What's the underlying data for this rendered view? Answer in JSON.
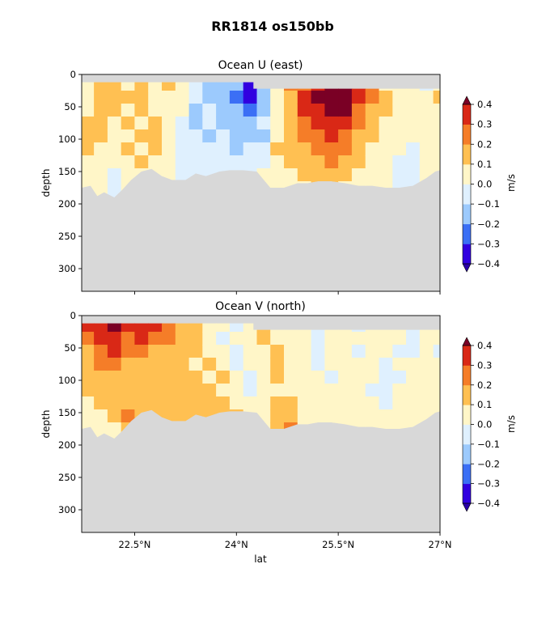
{
  "figure": {
    "suptitle": "RR1814 os150bb"
  },
  "colorbar": {
    "unit": "m/s",
    "levels": [
      -0.4,
      -0.3,
      -0.2,
      -0.1,
      0.0,
      0.1,
      0.2,
      0.3,
      0.4
    ],
    "tick_labels": [
      "−0.4",
      "−0.3",
      "−0.2",
      "−0.1",
      "0.0",
      "0.1",
      "0.2",
      "0.3",
      "0.4"
    ],
    "colors": [
      "#3100e0",
      "#3b6ff5",
      "#9ccafd",
      "#dff0fe",
      "#fff6c8",
      "#ffc052",
      "#f57d28",
      "#d92816"
    ],
    "under_color": "#2a00a8",
    "over_color": "#7a0025",
    "nodata_color": "#d8d8d8"
  },
  "chart_data": [
    {
      "type": "heatmap",
      "title": "Ocean U (east)",
      "xlabel": "",
      "ylabel": "depth",
      "xlim": [
        21.72,
        27.0
      ],
      "ylim": [
        335,
        0
      ],
      "x_ticks": [
        22.5,
        24.0,
        25.5,
        27.0
      ],
      "x_tick_labels": [],
      "y_ticks": [
        0,
        50,
        100,
        150,
        200,
        250,
        300
      ],
      "y_tick_labels": [
        "0",
        "50",
        "100",
        "150",
        "200",
        "250",
        "300"
      ],
      "surface_depth_m": [
        [
          21.72,
          12
        ],
        [
          24.25,
          12
        ],
        [
          24.25,
          22
        ],
        [
          25.0,
          22
        ],
        [
          27.0,
          22
        ]
      ],
      "bottom_depth_m": [
        [
          21.72,
          175
        ],
        [
          21.85,
          172
        ],
        [
          21.95,
          188
        ],
        [
          22.05,
          182
        ],
        [
          22.2,
          190
        ],
        [
          22.32,
          178
        ],
        [
          22.45,
          163
        ],
        [
          22.6,
          150
        ],
        [
          22.75,
          146
        ],
        [
          22.9,
          157
        ],
        [
          23.05,
          163
        ],
        [
          23.25,
          163
        ],
        [
          23.4,
          153
        ],
        [
          23.55,
          157
        ],
        [
          23.75,
          150
        ],
        [
          23.9,
          148
        ],
        [
          24.1,
          148
        ],
        [
          24.3,
          150
        ],
        [
          24.5,
          175
        ],
        [
          24.7,
          175
        ],
        [
          24.9,
          168
        ],
        [
          25.05,
          168
        ],
        [
          25.2,
          165
        ],
        [
          25.4,
          165
        ],
        [
          25.6,
          168
        ],
        [
          25.8,
          172
        ],
        [
          26.0,
          172
        ],
        [
          26.2,
          175
        ],
        [
          26.4,
          175
        ],
        [
          26.6,
          172
        ],
        [
          26.8,
          160
        ],
        [
          26.93,
          150
        ],
        [
          27.0,
          148
        ]
      ],
      "depths_m": [
        15,
        35,
        55,
        75,
        95,
        115,
        135,
        155,
        175
      ],
      "lats": [
        21.8,
        22.0,
        22.2,
        22.4,
        22.6,
        22.8,
        23.0,
        23.2,
        23.4,
        23.6,
        23.8,
        24.0,
        24.2,
        24.4,
        24.6,
        24.8,
        25.0,
        25.2,
        25.4,
        25.6,
        25.8,
        26.0,
        26.2,
        26.4,
        26.6,
        26.8,
        27.0
      ],
      "values": [
        [
          0.05,
          0.12,
          0.15,
          0.05,
          0.12,
          0.02,
          0.1,
          0.05,
          -0.05,
          -0.12,
          -0.15,
          -0.2,
          -0.35,
          -0.18,
          0.02,
          0.2,
          0.28,
          0.38,
          0.45,
          0.42,
          0.35,
          0.22,
          0.08,
          0.05,
          0.02,
          -0.02,
          0.05
        ],
        [
          0.08,
          0.15,
          0.18,
          0.12,
          0.15,
          0.05,
          0.08,
          0.02,
          -0.08,
          -0.15,
          -0.18,
          -0.22,
          -0.4,
          -0.2,
          0.0,
          0.18,
          0.3,
          0.42,
          0.48,
          0.45,
          0.32,
          0.2,
          0.1,
          0.08,
          0.05,
          0.02,
          0.12
        ],
        [
          0.05,
          0.12,
          0.1,
          0.08,
          0.12,
          0.08,
          0.05,
          0.0,
          -0.12,
          -0.1,
          -0.15,
          -0.18,
          -0.25,
          -0.15,
          0.05,
          0.15,
          0.32,
          0.38,
          0.42,
          0.4,
          0.28,
          0.15,
          0.12,
          0.05,
          0.05,
          0.08,
          0.05
        ],
        [
          0.12,
          0.1,
          0.08,
          0.12,
          0.05,
          0.12,
          0.08,
          -0.05,
          -0.12,
          -0.08,
          -0.12,
          -0.15,
          -0.12,
          -0.1,
          0.08,
          0.18,
          0.25,
          0.3,
          0.35,
          0.3,
          0.22,
          0.12,
          0.08,
          0.05,
          0.02,
          0.05,
          0.02
        ],
        [
          0.15,
          0.12,
          0.05,
          0.08,
          0.1,
          0.15,
          0.05,
          -0.08,
          -0.05,
          -0.12,
          -0.1,
          -0.12,
          -0.15,
          -0.12,
          0.05,
          0.15,
          0.2,
          0.25,
          0.32,
          0.28,
          0.18,
          0.1,
          0.05,
          0.02,
          0.0,
          0.02,
          0.05
        ],
        [
          0.12,
          0.08,
          0.05,
          0.1,
          0.08,
          0.12,
          0.02,
          -0.05,
          -0.08,
          -0.1,
          -0.08,
          -0.12,
          -0.1,
          -0.05,
          0.12,
          0.12,
          0.18,
          0.22,
          0.28,
          0.22,
          0.15,
          0.08,
          0.05,
          0.0,
          -0.05,
          0.02,
          0.05
        ],
        [
          0.08,
          0.05,
          0.02,
          0.05,
          0.1,
          0.08,
          0.0,
          -0.02,
          -0.05,
          -0.08,
          -0.05,
          -0.08,
          -0.08,
          -0.02,
          0.08,
          0.1,
          0.15,
          0.18,
          0.2,
          0.15,
          0.12,
          0.05,
          0.02,
          -0.02,
          -0.05,
          0.0,
          0.05
        ],
        [
          0.05,
          0.02,
          -0.02,
          0.02,
          0.05,
          0.05,
          0.0,
          -0.02,
          -0.05,
          -0.05,
          -0.02,
          -0.05,
          -0.05,
          0.02,
          0.05,
          0.08,
          0.12,
          0.15,
          0.12,
          0.1,
          0.08,
          0.05,
          0.0,
          -0.05,
          -0.08,
          0.02,
          0.05
        ],
        [
          0.02,
          0.0,
          -0.02,
          0.02,
          0.05,
          0.02,
          0.0,
          0.0,
          0.0,
          0.0,
          0.0,
          0.0,
          0.0,
          0.02,
          0.05,
          0.05,
          0.08,
          0.1,
          0.1,
          0.08,
          0.05,
          0.02,
          0.0,
          -0.05,
          -0.08,
          0.0,
          0.02
        ]
      ]
    },
    {
      "type": "heatmap",
      "title": "Ocean V (north)",
      "xlabel": "lat",
      "ylabel": "depth",
      "xlim": [
        21.72,
        27.0
      ],
      "ylim": [
        335,
        0
      ],
      "x_ticks": [
        22.5,
        24.0,
        25.5,
        27.0
      ],
      "x_tick_labels": [
        "22.5°N",
        "24°N",
        "25.5°N",
        "27°N"
      ],
      "y_ticks": [
        0,
        50,
        100,
        150,
        200,
        250,
        300
      ],
      "y_tick_labels": [
        "0",
        "50",
        "100",
        "150",
        "200",
        "250",
        "300"
      ],
      "surface_depth_m": [
        [
          21.72,
          12
        ],
        [
          24.25,
          12
        ],
        [
          24.25,
          22
        ],
        [
          25.0,
          22
        ],
        [
          27.0,
          22
        ]
      ],
      "bottom_depth_m": [
        [
          21.72,
          175
        ],
        [
          21.85,
          172
        ],
        [
          21.95,
          188
        ],
        [
          22.05,
          182
        ],
        [
          22.2,
          190
        ],
        [
          22.32,
          178
        ],
        [
          22.45,
          163
        ],
        [
          22.6,
          150
        ],
        [
          22.75,
          146
        ],
        [
          22.9,
          157
        ],
        [
          23.05,
          163
        ],
        [
          23.25,
          163
        ],
        [
          23.4,
          153
        ],
        [
          23.55,
          157
        ],
        [
          23.75,
          150
        ],
        [
          23.9,
          148
        ],
        [
          24.1,
          148
        ],
        [
          24.3,
          150
        ],
        [
          24.5,
          175
        ],
        [
          24.7,
          175
        ],
        [
          24.9,
          168
        ],
        [
          25.05,
          168
        ],
        [
          25.2,
          165
        ],
        [
          25.4,
          165
        ],
        [
          25.6,
          168
        ],
        [
          25.8,
          172
        ],
        [
          26.0,
          172
        ],
        [
          26.2,
          175
        ],
        [
          26.4,
          175
        ],
        [
          26.6,
          172
        ],
        [
          26.8,
          160
        ],
        [
          26.93,
          150
        ],
        [
          27.0,
          148
        ]
      ],
      "depths_m": [
        15,
        35,
        55,
        75,
        95,
        115,
        135,
        155,
        175
      ],
      "lats": [
        21.8,
        22.0,
        22.2,
        22.4,
        22.6,
        22.8,
        23.0,
        23.2,
        23.4,
        23.6,
        23.8,
        24.0,
        24.2,
        24.4,
        24.6,
        24.8,
        25.0,
        25.2,
        25.4,
        25.6,
        25.8,
        26.0,
        26.2,
        26.4,
        26.6,
        26.8,
        27.0
      ],
      "values": [
        [
          0.32,
          0.35,
          0.4,
          0.32,
          0.38,
          0.3,
          0.25,
          0.18,
          0.12,
          0.05,
          0.02,
          -0.02,
          0.05,
          0.12,
          0.08,
          0.05,
          0.02,
          -0.05,
          0.02,
          0.05,
          -0.02,
          0.02,
          0.05,
          0.02,
          -0.02,
          0.05,
          0.02
        ],
        [
          0.25,
          0.3,
          0.35,
          0.28,
          0.3,
          0.25,
          0.22,
          0.15,
          0.1,
          0.08,
          -0.02,
          0.0,
          0.08,
          0.1,
          0.05,
          0.08,
          0.05,
          -0.02,
          0.05,
          0.02,
          0.0,
          0.05,
          0.02,
          0.0,
          -0.05,
          0.02,
          0.0
        ],
        [
          0.18,
          0.28,
          0.32,
          0.22,
          0.25,
          0.18,
          0.15,
          0.12,
          0.12,
          0.05,
          0.02,
          -0.05,
          0.05,
          0.08,
          0.1,
          0.05,
          0.02,
          -0.05,
          0.05,
          0.0,
          -0.02,
          0.02,
          0.0,
          -0.02,
          -0.02,
          0.05,
          -0.02
        ],
        [
          0.15,
          0.22,
          0.25,
          0.18,
          0.15,
          0.15,
          0.12,
          0.15,
          0.08,
          0.1,
          0.05,
          -0.02,
          0.02,
          0.05,
          0.12,
          0.02,
          0.05,
          -0.02,
          0.02,
          0.05,
          0.0,
          0.02,
          -0.02,
          0.0,
          0.02,
          0.0,
          0.02
        ],
        [
          0.12,
          0.18,
          0.18,
          0.15,
          0.12,
          0.12,
          0.15,
          0.1,
          0.12,
          0.08,
          0.1,
          0.02,
          -0.05,
          0.02,
          0.1,
          0.05,
          0.02,
          0.02,
          -0.02,
          0.02,
          0.05,
          0.0,
          -0.05,
          -0.02,
          0.02,
          0.05,
          0.0
        ],
        [
          0.1,
          0.12,
          0.15,
          0.12,
          0.1,
          0.15,
          0.12,
          0.12,
          0.1,
          0.1,
          0.08,
          0.05,
          -0.02,
          0.05,
          0.08,
          0.08,
          0.05,
          0.0,
          0.02,
          0.05,
          0.02,
          -0.02,
          -0.05,
          0.0,
          0.05,
          0.02,
          0.02
        ],
        [
          0.08,
          0.1,
          0.12,
          0.1,
          0.12,
          0.1,
          0.12,
          0.15,
          0.12,
          0.15,
          0.12,
          0.08,
          0.02,
          0.02,
          0.12,
          0.1,
          0.05,
          0.02,
          0.05,
          0.02,
          0.05,
          0.0,
          -0.02,
          0.02,
          0.02,
          0.0,
          0.05
        ],
        [
          0.05,
          0.08,
          0.15,
          0.22,
          0.12,
          0.1,
          0.15,
          0.12,
          0.1,
          0.12,
          0.1,
          0.1,
          0.05,
          0.05,
          0.15,
          0.12,
          0.08,
          0.05,
          0.02,
          0.05,
          0.02,
          0.02,
          0.0,
          0.02,
          0.02,
          0.02,
          0.05
        ],
        [
          0.05,
          0.05,
          0.08,
          0.12,
          0.1,
          0.08,
          0.1,
          0.08,
          0.08,
          0.08,
          0.05,
          0.05,
          0.05,
          0.05,
          0.1,
          0.2,
          0.08,
          0.05,
          0.05,
          0.02,
          0.02,
          0.02,
          0.0,
          0.02,
          0.02,
          0.02,
          0.02
        ]
      ]
    }
  ]
}
